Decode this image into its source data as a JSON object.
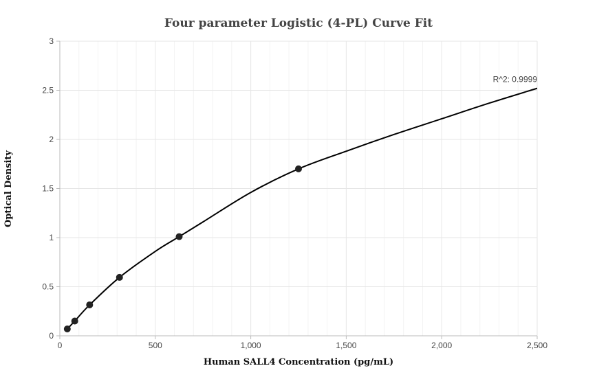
{
  "chart_data": {
    "type": "scatter",
    "title": "Four parameter Logistic (4-PL) Curve Fit",
    "xlabel": "Human SALL4 Concentration (pg/mL)",
    "ylabel": "Optical Density",
    "xlim": [
      0,
      2500
    ],
    "ylim": [
      0,
      3
    ],
    "x_ticks": [
      0,
      500,
      1000,
      1500,
      2000,
      2500
    ],
    "x_tick_labels": [
      "0",
      "500",
      "1,000",
      "1,500",
      "2,000",
      "2,500"
    ],
    "y_ticks": [
      0,
      0.5,
      1,
      1.5,
      2,
      2.5,
      3
    ],
    "y_tick_labels": [
      "0",
      "0.5",
      "1",
      "1.5",
      "2",
      "2.5",
      "3"
    ],
    "grid": true,
    "series": [
      {
        "kind": "points",
        "x": [
          39,
          78,
          156,
          312.5,
          625,
          1250
        ],
        "y": [
          0.07,
          0.15,
          0.315,
          0.595,
          1.01,
          1.7
        ]
      },
      {
        "kind": "fit-line",
        "x": [
          39,
          78,
          156,
          312.5,
          500,
          625,
          750,
          1000,
          1250,
          1500,
          1750,
          2000,
          2250,
          2500
        ],
        "y": [
          0.07,
          0.15,
          0.315,
          0.595,
          0.86,
          1.01,
          1.16,
          1.46,
          1.7,
          1.88,
          2.05,
          2.21,
          2.37,
          2.52
        ]
      }
    ],
    "annotations": [
      {
        "text": "R^2: 0.9999",
        "x": 2500,
        "y": 2.52
      }
    ]
  }
}
